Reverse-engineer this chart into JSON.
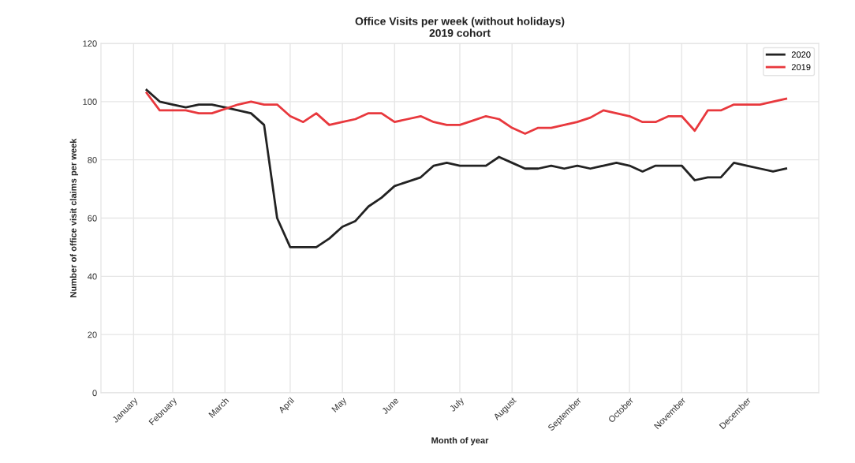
{
  "chart_data": {
    "type": "line",
    "title": "Office Visits per week (without holidays)\n2019 cohort",
    "xlabel": "Month of year",
    "ylabel": "Number of office visit claims per week",
    "categories": [
      "January",
      null,
      null,
      "February",
      null,
      null,
      null,
      "March",
      null,
      null,
      null,
      null,
      "April",
      null,
      null,
      null,
      "May",
      null,
      null,
      null,
      "June",
      null,
      null,
      null,
      null,
      "July",
      null,
      null,
      null,
      "August",
      null,
      null,
      null,
      null,
      "September",
      null,
      null,
      null,
      "October",
      null,
      null,
      null,
      "November",
      null,
      null,
      null,
      null,
      "December",
      null,
      null,
      null
    ],
    "series": [
      {
        "name": "2020",
        "color": "#222222",
        "values": [
          null,
          104,
          100,
          99,
          98,
          99,
          99,
          98,
          97,
          96,
          92,
          60,
          50,
          50,
          50,
          53,
          57,
          59,
          64,
          67,
          71,
          72.5,
          74,
          78,
          79,
          78,
          78,
          78,
          81,
          79,
          77,
          77,
          78,
          77,
          78,
          77,
          78,
          79,
          78,
          76,
          78,
          78,
          78,
          73,
          74,
          74,
          79,
          78,
          77,
          76,
          77
        ]
      },
      {
        "name": "2019",
        "color": "#e8383d",
        "values": [
          null,
          103,
          97,
          97,
          97,
          96,
          96,
          97.5,
          99,
          100,
          99,
          99,
          95,
          93,
          96,
          92,
          93,
          94,
          96,
          96,
          93,
          94,
          95,
          93,
          92,
          92,
          93.5,
          95,
          94,
          91,
          89,
          91,
          91,
          92,
          93,
          94.5,
          97,
          96,
          95,
          93,
          93,
          95,
          95,
          90,
          97,
          97,
          99,
          99,
          99,
          100,
          101
        ]
      }
    ],
    "ylim": [
      0,
      120
    ],
    "yticks": [
      0,
      20,
      40,
      60,
      80,
      100,
      120
    ],
    "grid": true,
    "legend": "top right",
    "marker": "none",
    "line_style": "solid"
  }
}
